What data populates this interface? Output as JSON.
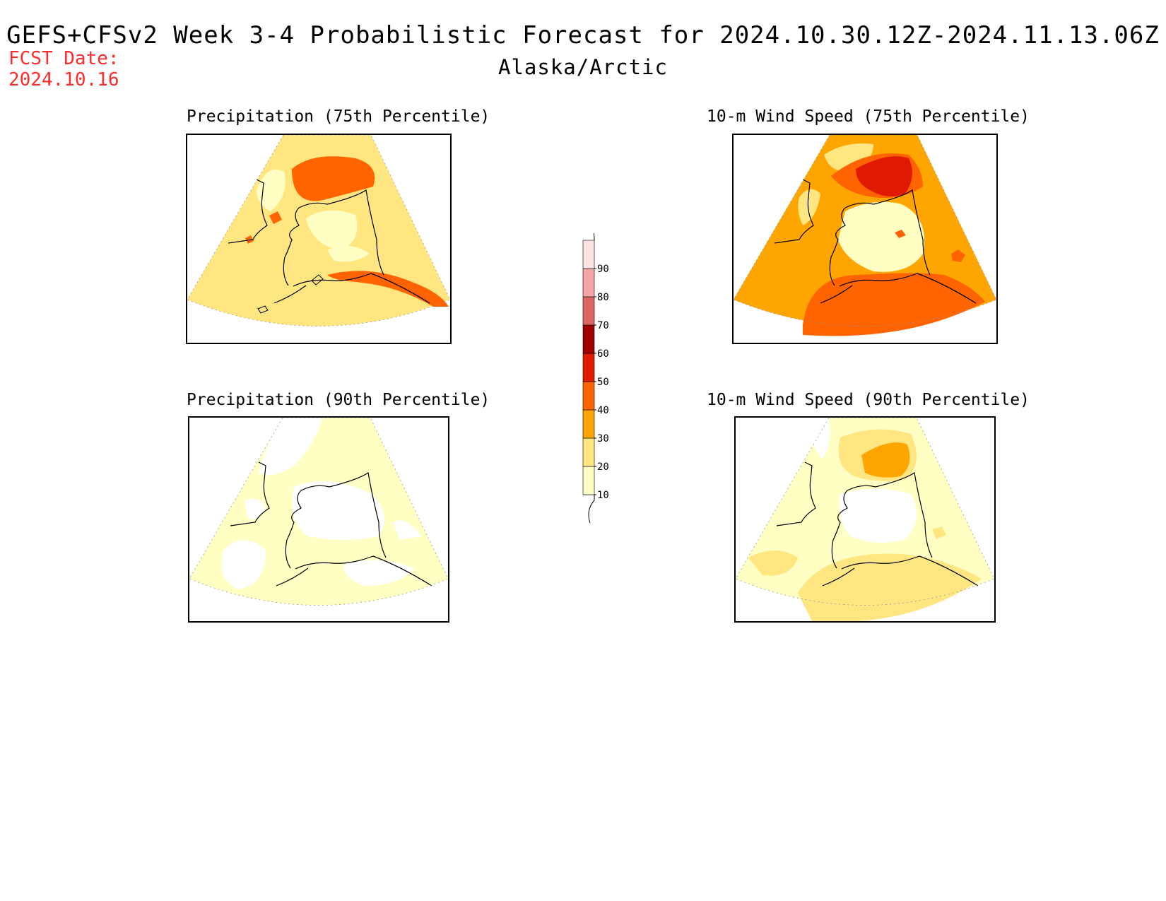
{
  "header": {
    "title": "GEFS+CFSv2 Week 3-4 Probabilistic Forecast for 2024.10.30.12Z-2024.11.13.06Z",
    "region": "Alaska/Arctic",
    "fcst_label": "FCST Date:",
    "fcst_date": "2024.10.16"
  },
  "panels": [
    {
      "id": "precip75",
      "title": "Precipitation (75th Percentile)"
    },
    {
      "id": "wind75",
      "title": "10-m Wind Speed (75th Percentile)"
    },
    {
      "id": "precip90",
      "title": "Precipitation (90th Percentile)"
    },
    {
      "id": "wind90",
      "title": "10-m Wind Speed (90th Percentile)"
    }
  ],
  "colorbar": {
    "levels": [
      "10",
      "20",
      "30",
      "40",
      "50",
      "60",
      "70",
      "80",
      "90"
    ],
    "colors": [
      "#ffffc4",
      "#ffe680",
      "#ffa500",
      "#ff6400",
      "#e01a00",
      "#a00000",
      "#dc6666",
      "#f2a6a6",
      "#fde1e1"
    ]
  }
}
